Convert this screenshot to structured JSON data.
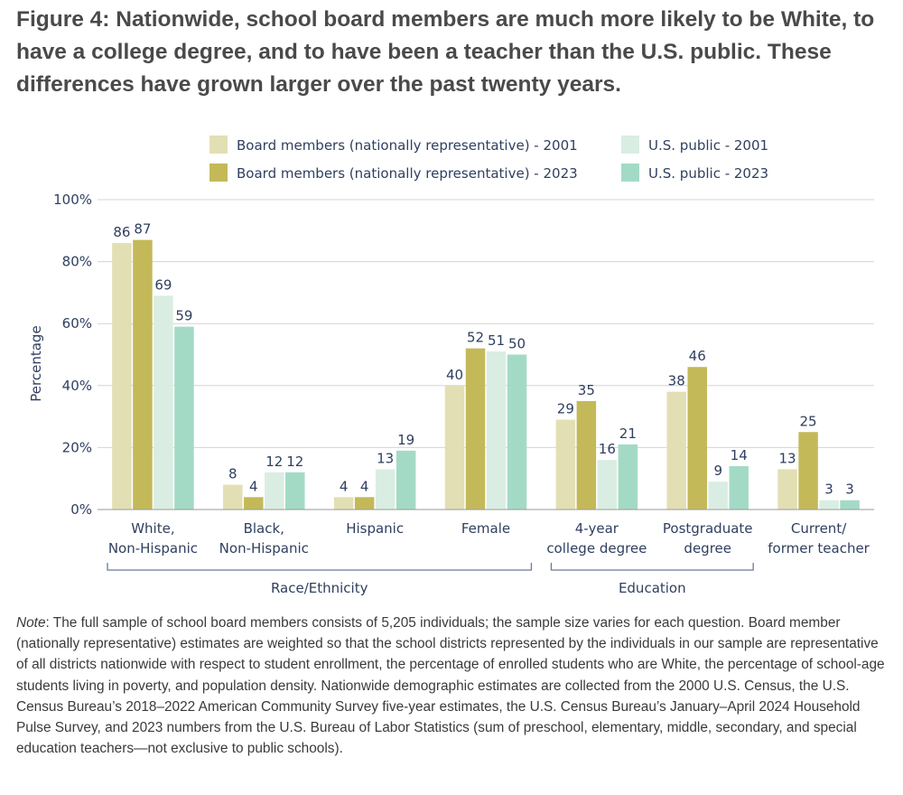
{
  "title": "Figure 4: Nationwide, school board members are much more likely to be White, to have a college degree, and to have been a teacher than the U.S. public. These differences have grown larger over the past twenty years.",
  "note": {
    "label": "Note",
    "text": ": The full sample of school board members consists of 5,205 individuals; the sample size varies for each question. Board member (nationally representative) estimates are weighted so that the school districts represented by the individuals in our sample are representative of all districts nationwide with respect to student enrollment, the percentage of enrolled students who are White, the percentage of school-age students living in poverty, and population density. Nationwide demographic estimates are collected from the 2000 U.S. Census, the U.S. Census Bureau’s 2018–2022 American Community Survey five-year estimates, the U.S. Census Bureau’s January–April 2024 Household Pulse Survey, and 2023 numbers from the U.S. Bureau of Labor Statistics (sum of preschool, elementary, middle, secondary, and special education teachers—not exclusive to public schools)."
  },
  "chart_data": {
    "type": "bar",
    "ylabel": "Percentage",
    "ylim": [
      0,
      100
    ],
    "yticks": [
      0,
      20,
      40,
      60,
      80,
      100
    ],
    "ytick_labels": [
      "0%",
      "20%",
      "40%",
      "60%",
      "80%",
      "100%"
    ],
    "grid": true,
    "legend_position": "top",
    "categories": [
      [
        "White,",
        "Non-Hispanic"
      ],
      [
        "Black,",
        "Non-Hispanic"
      ],
      [
        "Hispanic"
      ],
      [
        "Female"
      ],
      [
        "4-year",
        "college degree"
      ],
      [
        "Postgraduate",
        "degree"
      ],
      [
        "Current/",
        "former teacher"
      ]
    ],
    "series": [
      {
        "name": "Board members (nationally representative) - 2001",
        "color": "#e3dfb4",
        "values": [
          86,
          8,
          4,
          40,
          29,
          38,
          13
        ]
      },
      {
        "name": "Board members (nationally representative) - 2023",
        "color": "#c3b959",
        "values": [
          87,
          4,
          4,
          52,
          35,
          46,
          25
        ]
      },
      {
        "name": "U.S. public - 2001",
        "color": "#daede3",
        "values": [
          69,
          12,
          13,
          51,
          16,
          9,
          3
        ]
      },
      {
        "name": "U.S. public - 2023",
        "color": "#a3dac6",
        "values": [
          59,
          12,
          19,
          50,
          21,
          14,
          3
        ]
      }
    ],
    "groups": [
      {
        "label": "Race/Ethnicity",
        "from": 0,
        "to": 3
      },
      {
        "label": "Education",
        "from": 4,
        "to": 5
      }
    ]
  }
}
